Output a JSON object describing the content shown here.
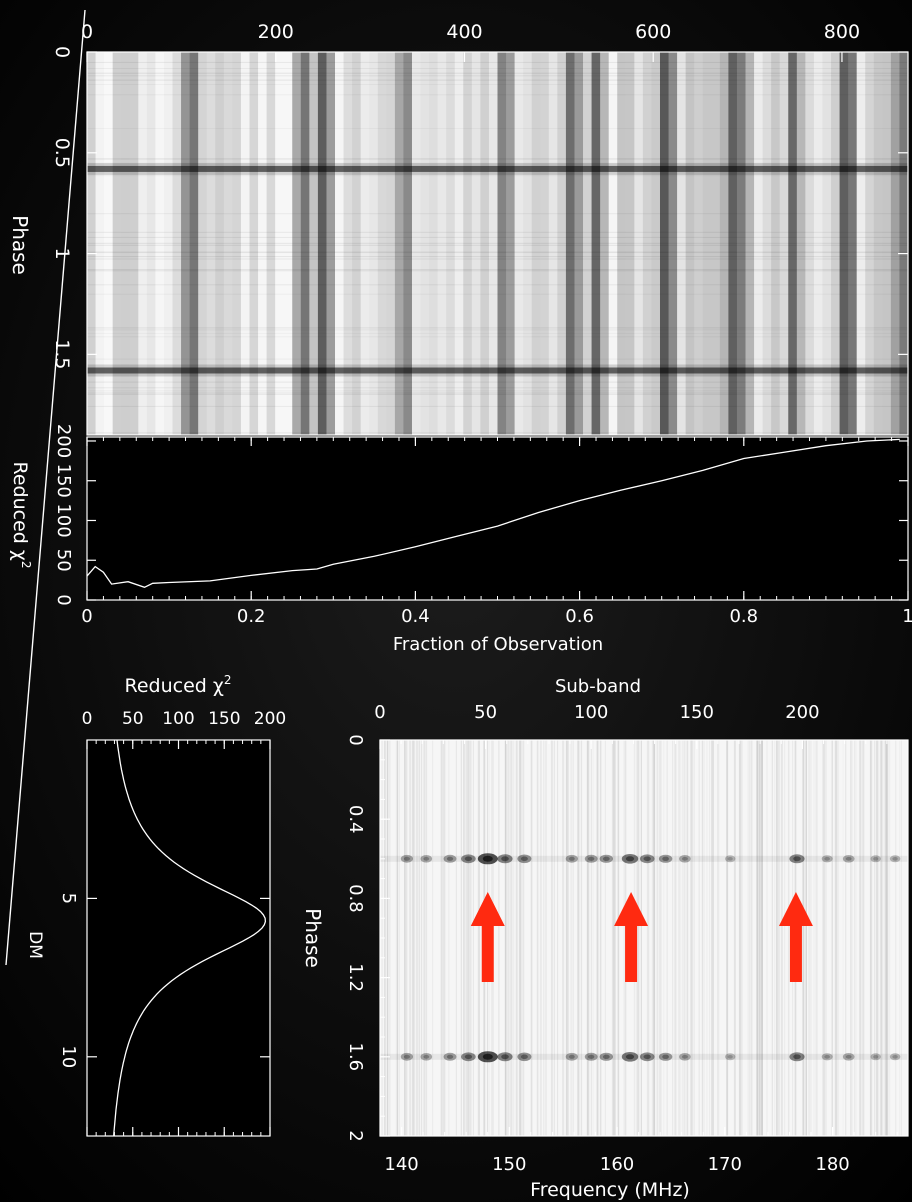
{
  "chart_data": [
    {
      "type": "heatmap",
      "panel": "phase-vs-time",
      "x_ticks": [
        "0",
        "200",
        "400",
        "600",
        "800"
      ],
      "x_range": [
        0,
        870
      ],
      "y_label": "Phase",
      "y_ticks": [
        "0",
        "0.5",
        "1",
        "1.5"
      ],
      "y_range": [
        0,
        1.9
      ],
      "pulse_phases": [
        0.58,
        1.58
      ],
      "bright_columns": [
        110,
        230,
        250,
        335,
        445,
        515,
        540,
        615,
        690,
        750,
        805,
        860
      ]
    },
    {
      "type": "line",
      "panel": "reduced-chi2-vs-fraction",
      "x_label": "Fraction of Observation",
      "x_ticks": [
        "0",
        "0.2",
        "0.4",
        "0.6",
        "0.8",
        "1"
      ],
      "y_label_text": "Reduced χ",
      "y_label_sup": "2",
      "y_ticks": [
        "0",
        "50",
        "100",
        "150",
        "200"
      ],
      "xlim": [
        0,
        1
      ],
      "ylim": [
        0,
        205
      ],
      "x": [
        0,
        0.01,
        0.02,
        0.03,
        0.05,
        0.07,
        0.08,
        0.1,
        0.15,
        0.2,
        0.25,
        0.28,
        0.3,
        0.35,
        0.4,
        0.45,
        0.5,
        0.55,
        0.6,
        0.65,
        0.7,
        0.75,
        0.8,
        0.85,
        0.9,
        0.95,
        0.99
      ],
      "y": [
        30,
        42,
        35,
        20,
        23,
        16,
        21,
        22,
        24,
        31,
        37,
        39,
        45,
        55,
        67,
        80,
        93,
        110,
        125,
        138,
        150,
        163,
        178,
        186,
        194,
        200,
        202
      ]
    },
    {
      "type": "line",
      "panel": "reduced-chi2-vs-dm",
      "title_text": "Reduced χ",
      "title_sup": "2",
      "x_ticks": [
        "0",
        "50",
        "100",
        "150",
        "200"
      ],
      "xlim": [
        0,
        200
      ],
      "y_label": "DM",
      "y_ticks": [
        "5",
        "10"
      ],
      "ylim": [
        0,
        12.5
      ],
      "peak_dm": 5.7,
      "peak_value": 195,
      "baseline": 20,
      "width": 1.6
    },
    {
      "type": "heatmap",
      "panel": "phase-vs-frequency",
      "top_label": "Sub-band",
      "top_ticks": [
        "0",
        "50",
        "100",
        "150",
        "200"
      ],
      "top_range": [
        0,
        250
      ],
      "x_label": "Frequency (MHz)",
      "x_ticks": [
        "140",
        "150",
        "160",
        "170",
        "180"
      ],
      "xlim": [
        138,
        187
      ],
      "y_label": "Phase",
      "y_ticks": [
        "0",
        "0.4",
        "0.8",
        "1.2",
        "1.6",
        "2"
      ],
      "ylim": [
        0,
        2
      ],
      "pulse_phases": [
        0.6,
        1.6
      ],
      "bright_spots": [
        {
          "freq": 140.5,
          "s": 0.35
        },
        {
          "freq": 142.3,
          "s": 0.3
        },
        {
          "freq": 144.5,
          "s": 0.4
        },
        {
          "freq": 146.2,
          "s": 0.55
        },
        {
          "freq": 148.0,
          "s": 1.0
        },
        {
          "freq": 149.6,
          "s": 0.6
        },
        {
          "freq": 151.4,
          "s": 0.5
        },
        {
          "freq": 155.8,
          "s": 0.35
        },
        {
          "freq": 157.6,
          "s": 0.4
        },
        {
          "freq": 159.0,
          "s": 0.45
        },
        {
          "freq": 161.2,
          "s": 0.7
        },
        {
          "freq": 162.8,
          "s": 0.55
        },
        {
          "freq": 164.5,
          "s": 0.45
        },
        {
          "freq": 166.3,
          "s": 0.3
        },
        {
          "freq": 170.5,
          "s": 0.2
        },
        {
          "freq": 176.7,
          "s": 0.6
        },
        {
          "freq": 179.5,
          "s": 0.25
        },
        {
          "freq": 181.5,
          "s": 0.3
        },
        {
          "freq": 184.0,
          "s": 0.2
        },
        {
          "freq": 185.8,
          "s": 0.22
        }
      ],
      "arrow_freqs": [
        148,
        161.3,
        176.6
      ],
      "arrow_color": "#ff2a10"
    }
  ]
}
